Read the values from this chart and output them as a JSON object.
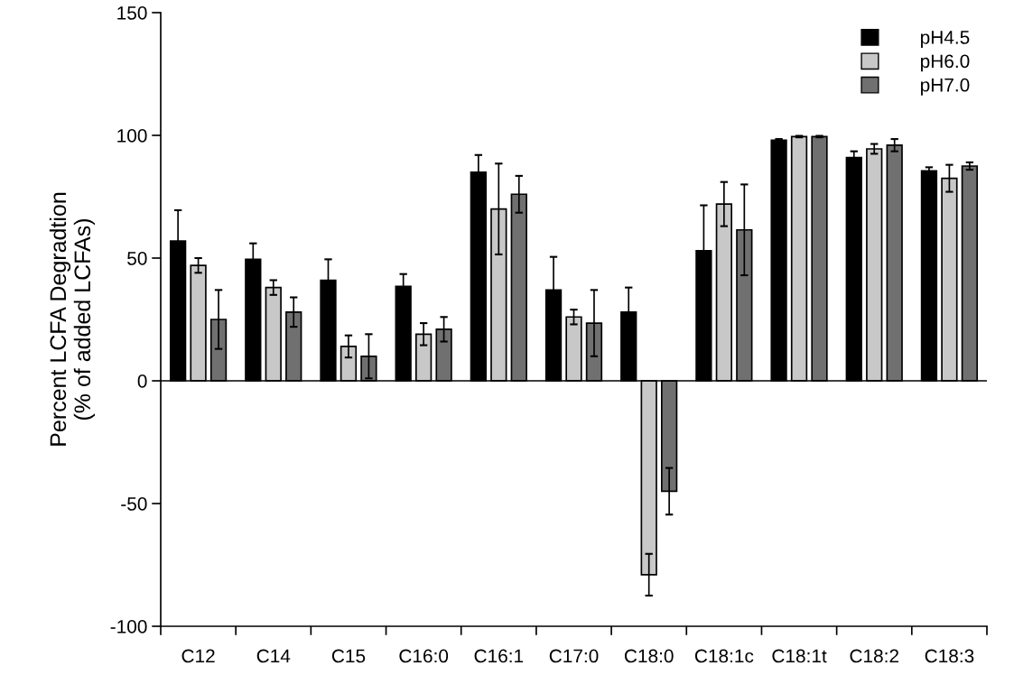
{
  "chart_data": {
    "type": "bar",
    "ylabel": "Percent LCFA Degradtion\n(% of added LCFAs)",
    "categories": [
      "C12",
      "C14",
      "C15",
      "C16:0",
      "C16:1",
      "C17:0",
      "C18:0",
      "C18:1c",
      "C18:1t",
      "C18:2",
      "C18:3"
    ],
    "series": [
      {
        "name": "pH4.5",
        "color": "#000000",
        "values": [
          57,
          49.5,
          41,
          38.5,
          85,
          37,
          28,
          53,
          98,
          91,
          85.5
        ],
        "errors": [
          12.5,
          6.5,
          8.5,
          5,
          7,
          13.5,
          10,
          18.5,
          0.5,
          2.5,
          1.5
        ]
      },
      {
        "name": "pH6.0",
        "color": "#c8c8c8",
        "values": [
          47,
          38,
          14,
          19,
          70,
          26,
          -79,
          72,
          99.5,
          94.5,
          82.5
        ],
        "errors": [
          3,
          3,
          4.5,
          4.5,
          18.5,
          3,
          8.5,
          9,
          0.3,
          2,
          5.5
        ]
      },
      {
        "name": "pH7.0",
        "color": "#707070",
        "values": [
          25,
          28,
          10,
          21,
          76,
          23.5,
          -45,
          61.5,
          99.5,
          96,
          87.5
        ],
        "errors": [
          12,
          6,
          9,
          5,
          7.5,
          13.5,
          9.5,
          18.5,
          0.3,
          2.5,
          1.5
        ]
      }
    ],
    "ylim": [
      -100,
      150
    ],
    "yticks": [
      -100,
      -50,
      0,
      50,
      100,
      150
    ],
    "ref_lines": [
      {
        "axis": "y",
        "value": 0
      }
    ],
    "legend": "top right",
    "grid": false
  }
}
